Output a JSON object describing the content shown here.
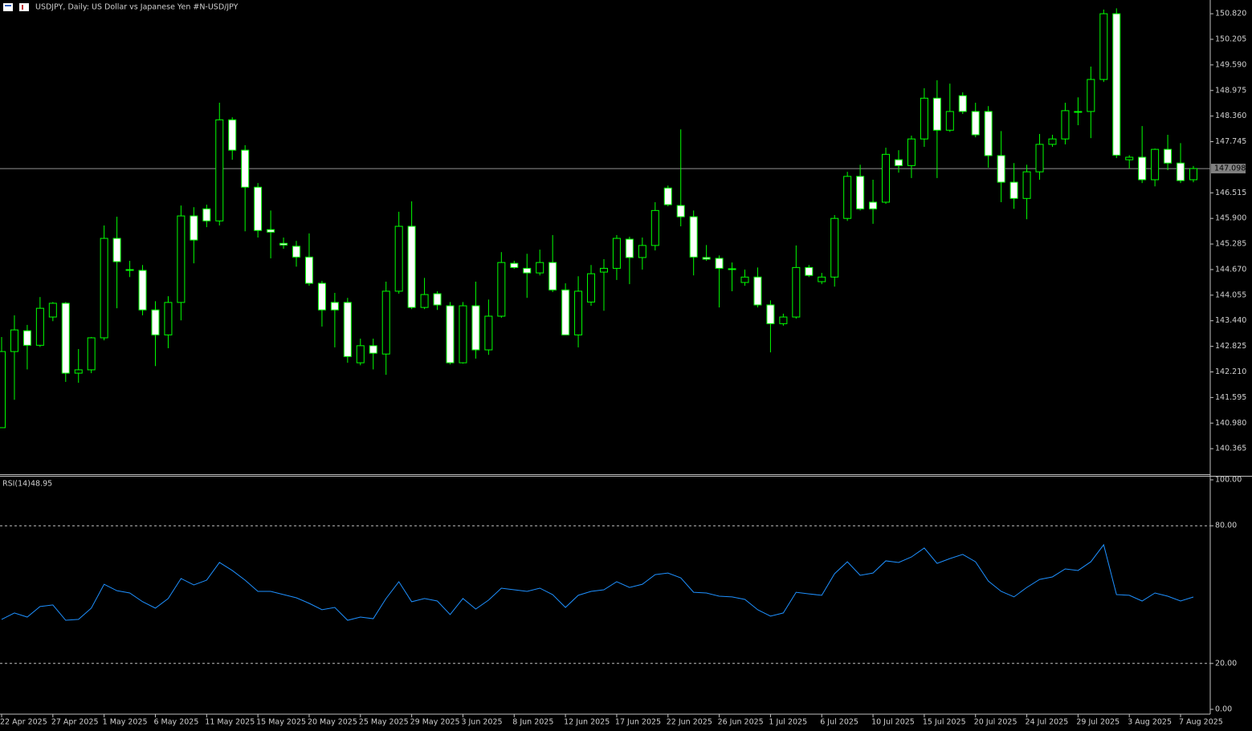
{
  "chart_data": [
    {
      "type": "candlestick",
      "title": "USDJPY, Daily:  US Dollar vs  Japanese Yen #N-USD/JPY",
      "open": [
        140.87,
        142.7,
        143.2,
        142.85,
        143.53,
        143.86,
        142.18,
        142.26,
        143.03,
        145.42,
        144.67,
        144.65,
        143.7,
        143.1,
        143.88,
        145.96,
        146.13,
        145.84,
        148.27,
        147.54,
        146.65,
        145.63,
        145.3,
        145.23,
        144.97,
        144.34,
        143.88,
        143.88,
        142.43,
        142.84,
        142.64,
        144.15,
        145.71,
        143.76,
        144.09,
        143.8,
        142.43,
        143.8,
        142.74,
        143.55,
        144.82,
        144.7,
        144.59,
        144.84,
        144.18,
        143.1,
        143.89,
        144.61,
        144.7,
        145.4,
        144.96,
        145.25,
        146.63,
        146.21,
        145.94,
        144.96,
        144.94,
        144.69,
        144.36,
        144.49,
        143.82,
        143.37,
        143.53,
        144.72,
        144.38,
        144.49,
        145.9,
        146.91,
        146.29,
        146.29,
        147.31,
        147.17,
        147.81,
        148.79,
        148.02,
        148.85,
        148.47,
        148.47,
        147.41,
        146.77,
        146.38,
        147.02,
        147.68,
        147.81,
        148.45,
        148.47,
        149.24,
        150.82,
        147.31,
        147.37,
        146.83,
        147.56,
        147.23,
        146.83
      ],
      "high": [
        143.05,
        143.57,
        143.34,
        144.01,
        143.89,
        143.89,
        142.76,
        143.05,
        145.73,
        145.94,
        144.88,
        144.78,
        143.91,
        144.03,
        146.21,
        146.17,
        146.23,
        148.68,
        148.33,
        147.66,
        146.75,
        146.09,
        145.44,
        145.36,
        145.54,
        144.4,
        144.11,
        143.99,
        143.01,
        143.01,
        144.38,
        146.06,
        146.31,
        144.47,
        144.15,
        143.89,
        143.89,
        144.38,
        143.95,
        145.09,
        144.88,
        145.05,
        145.15,
        145.5,
        144.34,
        144.51,
        144.78,
        144.92,
        145.5,
        145.46,
        145.44,
        146.29,
        146.69,
        148.04,
        146.09,
        145.26,
        145.01,
        144.84,
        144.67,
        144.72,
        143.93,
        143.61,
        145.25,
        144.78,
        144.59,
        145.98,
        147.02,
        147.19,
        146.83,
        147.6,
        147.54,
        147.89,
        149.03,
        149.22,
        149.14,
        148.93,
        148.68,
        148.6,
        148.0,
        147.23,
        147.19,
        147.93,
        147.91,
        148.68,
        148.81,
        149.55,
        150.92,
        150.95,
        147.42,
        148.12,
        147.58,
        147.91,
        147.71,
        147.16
      ],
      "low": [
        140.87,
        141.54,
        142.27,
        142.81,
        143.43,
        141.97,
        141.95,
        142.18,
        142.97,
        143.74,
        144.49,
        143.57,
        142.35,
        142.78,
        143.45,
        144.82,
        145.69,
        145.73,
        147.31,
        145.59,
        145.44,
        144.94,
        145.17,
        144.74,
        144.28,
        143.3,
        142.8,
        142.43,
        142.37,
        142.27,
        142.14,
        144.09,
        143.72,
        143.72,
        143.7,
        142.39,
        142.41,
        142.53,
        142.62,
        143.51,
        144.69,
        143.99,
        144.53,
        144.13,
        143.1,
        142.8,
        143.8,
        143.68,
        144.42,
        144.32,
        144.67,
        145.13,
        146.19,
        145.71,
        144.53,
        144.88,
        143.76,
        144.15,
        144.28,
        143.76,
        142.68,
        143.32,
        143.49,
        144.49,
        144.32,
        144.26,
        145.84,
        146.09,
        145.77,
        146.25,
        147.0,
        146.87,
        147.62,
        146.87,
        147.98,
        148.41,
        147.85,
        147.12,
        146.29,
        146.13,
        145.88,
        146.83,
        147.62,
        147.68,
        148.14,
        147.83,
        149.18,
        147.35,
        147.1,
        146.75,
        146.67,
        147.06,
        146.75,
        146.77
      ],
      "close": [
        142.7,
        143.22,
        142.85,
        143.74,
        143.86,
        142.18,
        142.26,
        143.03,
        145.42,
        144.86,
        144.65,
        143.7,
        143.1,
        143.88,
        145.96,
        145.38,
        145.84,
        148.27,
        147.54,
        146.65,
        145.61,
        145.57,
        145.26,
        144.97,
        144.34,
        143.7,
        143.7,
        142.58,
        142.84,
        142.66,
        144.15,
        145.71,
        143.76,
        144.07,
        143.82,
        142.43,
        143.8,
        142.74,
        143.55,
        144.84,
        144.72,
        144.59,
        144.84,
        144.18,
        143.1,
        144.15,
        144.57,
        144.7,
        145.42,
        144.96,
        145.25,
        146.09,
        146.23,
        145.94,
        144.97,
        144.92,
        144.7,
        144.67,
        144.49,
        143.82,
        143.37,
        143.53,
        144.72,
        144.53,
        144.49,
        145.9,
        146.91,
        146.13,
        146.13,
        147.44,
        147.17,
        147.81,
        148.79,
        148.02,
        148.47,
        148.47,
        147.91,
        147.41,
        146.77,
        146.38,
        147.02,
        147.68,
        147.81,
        148.49,
        148.47,
        149.24,
        150.82,
        147.42,
        147.37,
        146.83,
        147.56,
        147.23,
        146.81,
        147.098
      ],
      "ylim": [
        139.77,
        151.15
      ],
      "yticks": [
        {
          "value": 150.82,
          "label": "150.820"
        },
        150.205,
        {
          "value": 149.59,
          "label": "149.590"
        },
        148.975,
        {
          "value": 148.36,
          "label": "148.360"
        },
        147.745,
        146.515,
        {
          "value": 145.9,
          "label": "145.900"
        },
        145.285,
        {
          "value": 144.67,
          "label": "144.670"
        },
        144.055,
        {
          "value": 143.44,
          "label": "143.440"
        },
        142.825,
        {
          "value": 142.21,
          "label": "142.210"
        },
        141.595,
        {
          "value": 140.98,
          "label": "140.980"
        },
        140.365
      ],
      "xticks": [
        {
          "value": 0,
          "label": "22 Apr 2025"
        },
        {
          "value": 4,
          "label": "27 Apr 2025"
        },
        {
          "value": 8,
          "label": "1 May 2025"
        },
        {
          "value": 12,
          "label": "6 May 2025"
        },
        {
          "value": 16,
          "label": "11 May 2025"
        },
        {
          "value": 20,
          "label": "15 May 2025"
        },
        {
          "value": 24,
          "label": "20 May 2025"
        },
        {
          "value": 28,
          "label": "25 May 2025"
        },
        {
          "value": 32,
          "label": "29 May 2025"
        },
        {
          "value": 36,
          "label": "3 Jun 2025"
        },
        {
          "value": 40,
          "label": "8 Jun 2025"
        },
        {
          "value": 44,
          "label": "12 Jun 2025"
        },
        {
          "value": 48,
          "label": "17 Jun 2025"
        },
        {
          "value": 52,
          "label": "22 Jun 2025"
        },
        {
          "value": 56,
          "label": "26 Jun 2025"
        },
        {
          "value": 60,
          "label": "1 Jul 2025"
        },
        {
          "value": 64,
          "label": "6 Jul 2025"
        },
        {
          "value": 68,
          "label": "10 Jul 2025"
        },
        {
          "value": 72,
          "label": "15 Jul 2025"
        },
        {
          "value": 76,
          "label": "20 Jul 2025"
        },
        {
          "value": 80,
          "label": "24 Jul 2025"
        },
        {
          "value": 84,
          "label": "29 Jul 2025"
        },
        {
          "value": 88,
          "label": "3 Aug 2025"
        },
        {
          "value": 92,
          "label": "7 Aug 2025"
        }
      ],
      "bull_color": "#000000",
      "bear_color": "#ffffff",
      "outline_color": "#00ff00"
    },
    {
      "type": "line",
      "title": "RSI(14)",
      "values": [
        39.2,
        42.0,
        40.2,
        44.8,
        45.5,
        38.8,
        39.2,
        44.1,
        54.5,
        51.7,
        50.7,
        46.9,
        44.1,
        48.3,
        57.0,
        54.2,
        56.3,
        64.0,
        60.5,
        56.3,
        51.4,
        51.4,
        50.0,
        48.6,
        46.2,
        43.4,
        44.4,
        38.8,
        40.2,
        39.5,
        48.3,
        55.6,
        46.9,
        48.3,
        47.2,
        41.3,
        48.3,
        43.7,
        47.6,
        52.8,
        52.1,
        51.4,
        52.8,
        50.0,
        44.4,
        49.7,
        51.4,
        52.1,
        55.6,
        53.1,
        54.5,
        58.7,
        59.4,
        57.3,
        51.0,
        50.7,
        49.3,
        49.0,
        47.9,
        43.4,
        40.6,
        42.0,
        51.0,
        50.3,
        49.7,
        59.1,
        64.3,
        58.4,
        59.4,
        64.7,
        64.0,
        66.4,
        70.3,
        63.6,
        65.7,
        67.5,
        64.3,
        55.9,
        51.4,
        49.0,
        53.1,
        56.6,
        57.7,
        61.2,
        60.5,
        64.3,
        71.7,
        50.0,
        49.7,
        47.2,
        50.7,
        49.3,
        47.2,
        48.95
      ],
      "color": "#1e90ff",
      "ylim": [
        0,
        100
      ],
      "yticks": [
        {
          "value": 100,
          "label": "100.00"
        },
        {
          "value": 80,
          "label": "80.00"
        },
        {
          "value": 20,
          "label": "20.00"
        },
        {
          "value": 0,
          "label": "0.00"
        }
      ],
      "level_lines": true
    }
  ]
}
